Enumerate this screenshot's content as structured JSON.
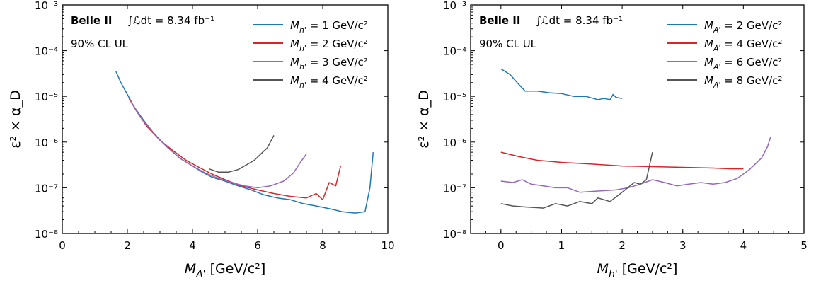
{
  "chart_data": [
    {
      "type": "line",
      "xlabel": "M_{A'} [GeV/c²]",
      "ylabel": "ε² × α_D",
      "xlim": [
        0,
        10
      ],
      "ylim": [
        1e-08,
        0.001
      ],
      "yscale": "log",
      "xticks": [
        "0",
        "2",
        "4",
        "6",
        "8",
        "10"
      ],
      "yticks": [
        "10⁻⁸",
        "10⁻⁷",
        "10⁻⁶",
        "10⁻⁵",
        "10⁻⁴",
        "10⁻³"
      ],
      "experiment_label": "Belle II",
      "luminosity_label": "∫ℒdt = 8.34 fb⁻¹",
      "cl_label": "90% CL UL",
      "legend_position": "top-right",
      "series": [
        {
          "name": "M_{h'} = 1 GeV/c²",
          "color": "#1f77b4",
          "x": [
            1.65,
            1.8,
            2.0,
            2.2,
            2.5,
            2.8,
            3.0,
            3.3,
            3.6,
            4.0,
            4.3,
            4.6,
            5.0,
            5.4,
            5.8,
            6.2,
            6.6,
            7.0,
            7.4,
            7.8,
            8.2,
            8.6,
            9.0,
            9.3,
            9.45,
            9.55
          ],
          "y": [
            3.5e-05,
            2e-05,
            1.1e-05,
            6e-06,
            3e-06,
            1.6e-06,
            1.1e-06,
            7e-07,
            4.5e-07,
            3e-07,
            2.2e-07,
            1.7e-07,
            1.4e-07,
            1.1e-07,
            9e-08,
            7e-08,
            6e-08,
            5.5e-08,
            4.5e-08,
            4e-08,
            3.5e-08,
            3e-08,
            2.8e-08,
            3e-08,
            1e-07,
            6e-07
          ]
        },
        {
          "name": "M_{h'} = 2 GeV/c²",
          "color": "#d62728",
          "x": [
            2.05,
            2.3,
            2.6,
            3.0,
            3.4,
            3.8,
            4.2,
            4.6,
            5.0,
            5.5,
            6.0,
            6.5,
            7.0,
            7.5,
            7.8,
            8.0,
            8.2,
            8.4,
            8.55
          ],
          "y": [
            9e-06,
            4.5e-06,
            2.2e-06,
            1.1e-06,
            6.5e-07,
            4e-07,
            2.8e-07,
            2e-07,
            1.5e-07,
            1.1e-07,
            9e-08,
            7.5e-08,
            6.5e-08,
            6e-08,
            7.5e-08,
            5.5e-08,
            1.3e-07,
            1.1e-07,
            3e-07
          ]
        },
        {
          "name": "M_{h'} = 3 GeV/c²",
          "color": "#9467bd",
          "x": [
            2.1,
            2.4,
            2.8,
            3.2,
            3.6,
            4.0,
            4.4,
            4.8,
            5.2,
            5.6,
            6.0,
            6.4,
            6.8,
            7.1,
            7.3,
            7.5
          ],
          "y": [
            8e-06,
            3.5e-06,
            1.6e-06,
            8e-07,
            4.5e-07,
            3e-07,
            2.1e-07,
            1.6e-07,
            1.3e-07,
            1.1e-07,
            1e-07,
            1.1e-07,
            1.4e-07,
            2.1e-07,
            3.5e-07,
            5.5e-07
          ]
        },
        {
          "name": "M_{h'} = 4 GeV/c²",
          "color": "#555555",
          "x": [
            4.5,
            4.8,
            5.1,
            5.4,
            5.7,
            5.9,
            6.1,
            6.3,
            6.5
          ],
          "y": [
            2.6e-07,
            2.2e-07,
            2.2e-07,
            2.5e-07,
            3.3e-07,
            4e-07,
            5.5e-07,
            7.5e-07,
            1.4e-06
          ]
        }
      ]
    },
    {
      "type": "line",
      "xlabel": "M_{h'} [GeV/c²]",
      "ylabel": "ε² × α_D",
      "xlim": [
        -0.5,
        5
      ],
      "ylim": [
        1e-08,
        0.001
      ],
      "yscale": "log",
      "xticks": [
        "0",
        "1",
        "2",
        "3",
        "4",
        "5"
      ],
      "yticks": [
        "10⁻⁸",
        "10⁻⁷",
        "10⁻⁶",
        "10⁻⁵",
        "10⁻⁴",
        "10⁻³"
      ],
      "experiment_label": "Belle II",
      "luminosity_label": "∫ℒdt = 8.34 fb⁻¹",
      "cl_label": "90% CL UL",
      "legend_position": "top-right",
      "series": [
        {
          "name": "M_{A'} = 2 GeV/c²",
          "color": "#1f77b4",
          "x": [
            0.0,
            0.15,
            0.3,
            0.4,
            0.6,
            0.8,
            1.0,
            1.2,
            1.4,
            1.6,
            1.7,
            1.8,
            1.85,
            1.9,
            2.0
          ],
          "y": [
            4e-05,
            3e-05,
            1.8e-05,
            1.3e-05,
            1.3e-05,
            1.2e-05,
            1.15e-05,
            1e-05,
            1e-05,
            8.5e-06,
            9e-06,
            8.5e-06,
            1.1e-05,
            9.5e-06,
            9e-06
          ]
        },
        {
          "name": "M_{A'} = 4 GeV/c²",
          "color": "#d62728",
          "x": [
            0.0,
            0.3,
            0.6,
            1.0,
            1.5,
            2.0,
            2.5,
            3.0,
            3.5,
            3.8,
            4.0
          ],
          "y": [
            6e-07,
            4.8e-07,
            4e-07,
            3.6e-07,
            3.3e-07,
            3e-07,
            2.9e-07,
            2.8e-07,
            2.7e-07,
            2.6e-07,
            2.6e-07
          ]
        },
        {
          "name": "M_{A'} = 6 GeV/c²",
          "color": "#9467bd",
          "x": [
            0.0,
            0.2,
            0.35,
            0.5,
            0.7,
            0.9,
            1.1,
            1.3,
            1.6,
            1.9,
            2.1,
            2.3,
            2.5,
            2.7,
            2.9,
            3.1,
            3.3,
            3.5,
            3.7,
            3.9,
            4.1,
            4.3,
            4.4,
            4.45
          ],
          "y": [
            1.4e-07,
            1.3e-07,
            1.5e-07,
            1.2e-07,
            1.1e-07,
            1e-07,
            1e-07,
            8e-08,
            8.5e-08,
            9e-08,
            1e-07,
            1.2e-07,
            1.5e-07,
            1.3e-07,
            1.1e-07,
            1.2e-07,
            1.3e-07,
            1.2e-07,
            1.3e-07,
            1.6e-07,
            2.5e-07,
            4.5e-07,
            8e-07,
            1.3e-06
          ]
        },
        {
          "name": "M_{A'} = 8 GeV/c²",
          "color": "#555555",
          "x": [
            0.0,
            0.2,
            0.4,
            0.7,
            0.9,
            1.1,
            1.3,
            1.5,
            1.6,
            1.8,
            2.0,
            2.2,
            2.3,
            2.4,
            2.5
          ],
          "y": [
            4.5e-08,
            4e-08,
            3.8e-08,
            3.6e-08,
            4.5e-08,
            4e-08,
            5e-08,
            4.5e-08,
            6e-08,
            5e-08,
            8e-08,
            1.3e-07,
            1.2e-07,
            1.5e-07,
            6e-07
          ]
        }
      ]
    }
  ]
}
